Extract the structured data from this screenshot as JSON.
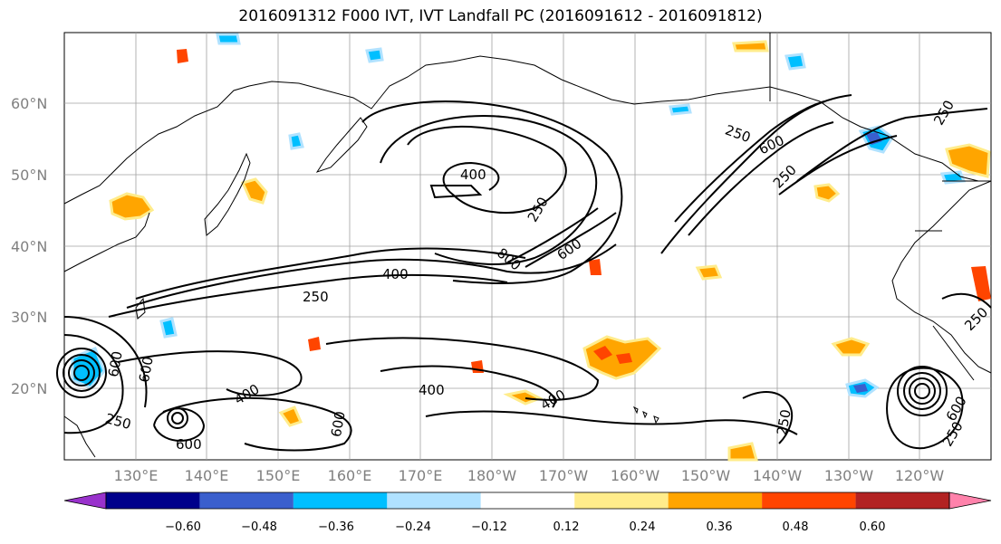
{
  "title": "2016091312 F000 IVT, IVT Landfall PC (2016091612 - 2016091812)",
  "lat_labels": [
    "60°N",
    "50°N",
    "40°N",
    "30°N",
    "20°N"
  ],
  "lon_labels": [
    "130°E",
    "140°E",
    "150°E",
    "160°E",
    "170°E",
    "180°W",
    "170°W",
    "160°W",
    "150°W",
    "140°W",
    "130°W",
    "120°W"
  ],
  "contour_labels": [
    "400",
    "250",
    "400",
    "250",
    "800",
    "600",
    "250",
    "600",
    "250",
    "400",
    "400",
    "400",
    "250",
    "600",
    "600",
    "250",
    "600",
    "250",
    "250",
    "600",
    "600",
    "250"
  ],
  "colorbar": {
    "colors": [
      "#9932CC",
      "#00008B",
      "#3A5FCD",
      "#00BFFF",
      "#B0E2FF",
      "#FFFFFF",
      "#FFEC8B",
      "#FFA500",
      "#FF4500",
      "#B22222",
      "#FF82AB"
    ],
    "tick_labels": [
      "−0.60",
      "−0.48",
      "−0.36",
      "−0.24",
      "−0.12",
      "0.12",
      "0.24",
      "0.36",
      "0.48",
      "0.60"
    ]
  },
  "colors": {
    "grid": "#a0a0a0",
    "coast": "#000000",
    "contour": "#000000"
  }
}
